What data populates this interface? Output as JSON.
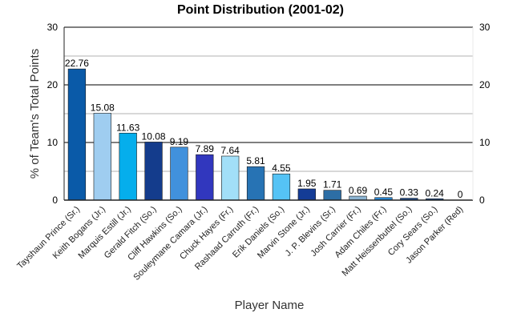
{
  "chart_data": {
    "type": "bar",
    "title": "Point Distribution (2001-02)",
    "xlabel": "Player Name",
    "ylabel": "% of Team's Total Points",
    "ylim": [
      0,
      30
    ],
    "yticks": [
      0,
      10,
      20,
      30
    ],
    "grid": true,
    "categories": [
      "Tayshaun Prince (Sr.)",
      "Keith Bogans (Jr.)",
      "Marquis Estill (Jr.)",
      "Gerald Fitch (So.)",
      "Cliff Hawkins (So.)",
      "Souleymane Camara (Jr.)",
      "Chuck Hayes (Fr.)",
      "Rashaad Carruth (Fr.)",
      "Erik Daniels (So.)",
      "Marvin Stone (Jr.)",
      "J. P. Blevins (Sr.)",
      "Josh Carrier (Fr.)",
      "Adam Chiles (Fr.)",
      "Matt Heissenbuttel (So.)",
      "Cory Sears (So.)",
      "Jason Parker (Red)"
    ],
    "values": [
      22.76,
      15.08,
      11.63,
      10.08,
      9.19,
      7.89,
      7.64,
      5.81,
      4.55,
      1.95,
      1.71,
      0.69,
      0.45,
      0.33,
      0.24,
      0
    ],
    "value_labels": [
      "22.76",
      "15.08",
      "11.63",
      "10.08",
      "9.19",
      "7.89",
      "7.64",
      "5.81",
      "4.55",
      "1.95",
      "1.71",
      "0.69",
      "0.45",
      "0.33",
      "0.24",
      "0"
    ],
    "colors": [
      "#0a5aa8",
      "#9fcdf0",
      "#05aeec",
      "#143c8c",
      "#4191dc",
      "#3137be",
      "#a2dff8",
      "#2773b4",
      "#55c3f5",
      "#143c96",
      "#2d6ea5",
      "#8cb4d2",
      "#2887d2",
      "#1a4b91",
      "#1e5aaa",
      "#d7e6f2"
    ]
  }
}
